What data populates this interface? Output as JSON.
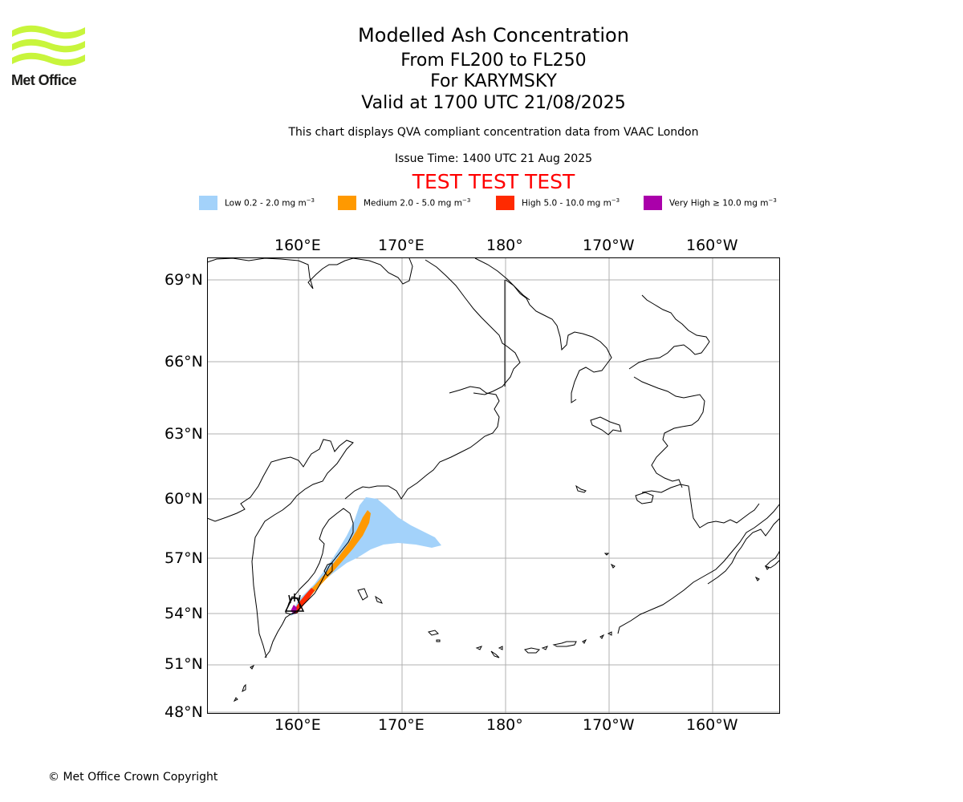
{
  "logo": {
    "text": "Met Office",
    "color": "#c8f53c"
  },
  "header": {
    "title": "Modelled Ash Concentration",
    "levels": "From FL200 to FL250",
    "volcano": "For KARYMSKY",
    "valid": "Valid at 1700 UTC 21/08/2025",
    "description": "This chart displays QVA compliant concentration data from VAAC London",
    "issue_time": "Issue Time: 1400 UTC 21 Aug 2025",
    "test_banner": "TEST TEST TEST"
  },
  "legend": [
    {
      "label": "Low 0.2 - 2.0 mg m",
      "sup": "−3",
      "color": "#a3d2fa"
    },
    {
      "label": "Medium 2.0 - 5.0 mg m",
      "sup": "−3",
      "color": "#ff9900"
    },
    {
      "label": "High 5.0 - 10.0 mg m",
      "sup": "−3",
      "color": "#ff2a00"
    },
    {
      "label": "Very High ≥ 10.0 mg m",
      "sup": "−3",
      "color": "#aa00aa"
    }
  ],
  "map": {
    "lon_labels": [
      "160°E",
      "170°E",
      "180°",
      "170°W",
      "160°W"
    ],
    "lat_labels": [
      "69°N",
      "66°N",
      "63°N",
      "60°N",
      "57°N",
      "54°N",
      "51°N",
      "48°N"
    ]
  },
  "footer": {
    "copyright": "© Met Office Crown Copyright"
  }
}
